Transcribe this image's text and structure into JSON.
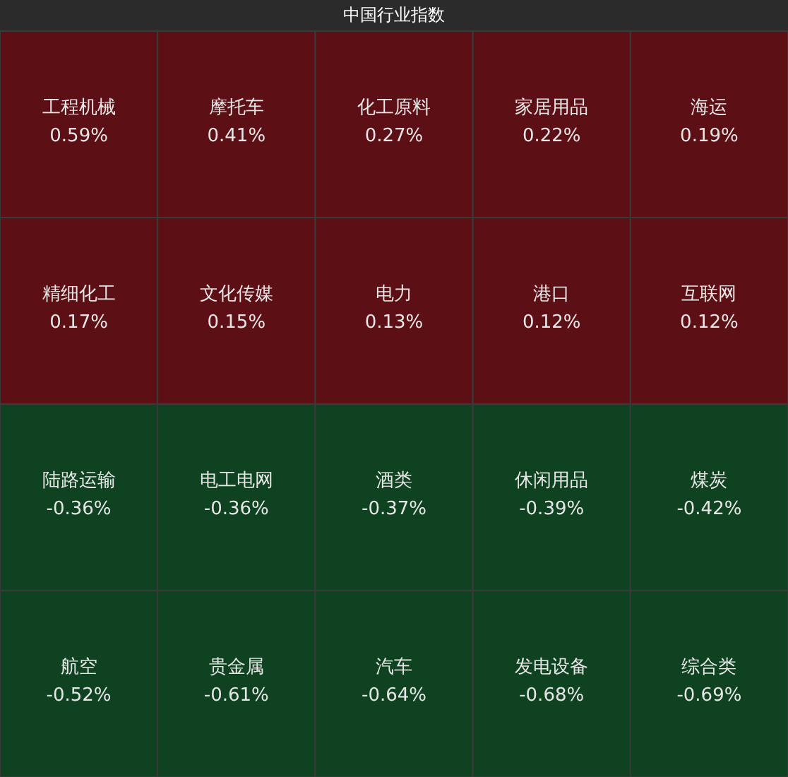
{
  "chart_data": {
    "type": "other",
    "title": "中国行业指数",
    "categories": [
      "工程机械",
      "摩托车",
      "化工原料",
      "家居用品",
      "海运",
      "精细化工",
      "文化传媒",
      "电力",
      "港口",
      "互联网",
      "陆路运输",
      "电工电网",
      "酒类",
      "休闲用品",
      "煤炭",
      "航空",
      "贵金属",
      "汽车",
      "发电设备",
      "综合类"
    ],
    "values": [
      0.59,
      0.41,
      0.27,
      0.22,
      0.19,
      0.17,
      0.15,
      0.13,
      0.12,
      0.12,
      -0.36,
      -0.36,
      -0.37,
      -0.39,
      -0.42,
      -0.52,
      -0.61,
      -0.64,
      -0.68,
      -0.69
    ],
    "value_labels": [
      "0.59%",
      "0.41%",
      "0.27%",
      "0.22%",
      "0.19%",
      "0.17%",
      "0.15%",
      "0.13%",
      "0.12%",
      "0.12%",
      "-0.36%",
      "-0.36%",
      "-0.37%",
      "-0.39%",
      "-0.42%",
      "-0.52%",
      "-0.61%",
      "-0.64%",
      "-0.68%",
      "-0.69%"
    ],
    "colors": [
      "#5c0f14",
      "#5c0f14",
      "#5c0f14",
      "#5c0f14",
      "#5c0f14",
      "#5c0f14",
      "#5c0f14",
      "#5c0f14",
      "#5c0f14",
      "#5c0f14",
      "#0f4220",
      "#0f4220",
      "#0f4220",
      "#0f4220",
      "#0f4220",
      "#0f4220",
      "#0f4220",
      "#0f4220",
      "#0f4220",
      "#0f4220"
    ]
  }
}
